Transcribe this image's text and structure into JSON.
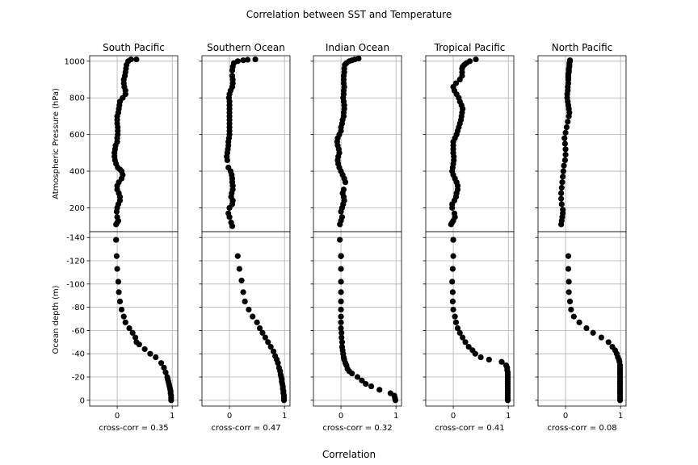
{
  "figure": {
    "title": "Correlation between SST and Temperature",
    "xlabel": "Correlation",
    "ylabel_top": "Atmospheric Pressure (hPa)",
    "ylabel_bottom": "Ocean depth (m)"
  },
  "chart_data": {
    "type": "scatter",
    "grid": true,
    "xlim": [
      -0.5,
      1.1
    ],
    "x_ticks": [
      0,
      1
    ],
    "atmosphere": {
      "ylabel": "Atmospheric Pressure (hPa)",
      "ylim": [
        1030,
        70
      ],
      "y_ticks": [
        200,
        400,
        600,
        800,
        1000
      ]
    },
    "ocean": {
      "ylabel": "Ocean depth (m)",
      "ylim": [
        -145,
        5
      ],
      "y_ticks": [
        0,
        -20,
        -40,
        -60,
        -80,
        -100,
        -120,
        -140
      ]
    },
    "panels": [
      {
        "name": "South Pacific",
        "caption": "cross-corr = 0.35",
        "atmosphere": {
          "x": [
            -0.02,
            0.0,
            0.02,
            0.0,
            -0.01,
            0.0,
            0.02,
            0.05,
            0.05,
            0.03,
            0.0,
            0.0,
            0.03,
            0.08,
            0.1,
            0.08,
            0.05,
            0.01,
            -0.02,
            -0.04,
            -0.05,
            -0.05,
            -0.04,
            -0.03,
            0.0,
            0.0,
            0.01,
            0.01,
            0.01,
            0.0,
            0.0,
            0.0,
            0.02,
            0.03,
            0.04,
            0.05,
            0.1,
            0.15,
            0.15,
            0.13,
            0.12,
            0.12,
            0.14,
            0.15,
            0.16,
            0.17,
            0.2,
            0.25,
            0.35
          ],
          "y": [
            110,
            120,
            130,
            150,
            180,
            200,
            220,
            240,
            260,
            280,
            300,
            320,
            340,
            360,
            380,
            400,
            410,
            420,
            440,
            460,
            480,
            500,
            520,
            540,
            560,
            580,
            600,
            620,
            640,
            660,
            680,
            700,
            720,
            740,
            760,
            780,
            800,
            820,
            840,
            860,
            880,
            900,
            920,
            940,
            960,
            980,
            1000,
            1010,
            1010
          ]
        },
        "ocean": {
          "x": [
            0.98,
            0.98,
            0.98,
            0.97,
            0.97,
            0.96,
            0.95,
            0.94,
            0.93,
            0.92,
            0.91,
            0.88,
            0.85,
            0.8,
            0.7,
            0.6,
            0.5,
            0.4,
            0.35,
            0.33,
            0.28,
            0.22,
            0.15,
            0.12,
            0.08,
            0.05,
            0.03,
            0.02,
            0.0,
            -0.01,
            -0.02,
            -0.02
          ],
          "y": [
            0,
            -2,
            -4,
            -6,
            -8,
            -10,
            -12,
            -14,
            -16,
            -18,
            -20,
            -24,
            -28,
            -32,
            -37,
            -40,
            -44,
            -48,
            -50,
            -54,
            -58,
            -62,
            -67,
            -72,
            -78,
            -85,
            -93,
            -102,
            -113,
            -124,
            -138,
            -138
          ]
        }
      },
      {
        "name": "Southern Ocean",
        "caption": "cross-corr = 0.47",
        "atmosphere": {
          "x": [
            0.05,
            0.03,
            0.0,
            -0.02,
            0.0,
            0.05,
            0.06,
            0.03,
            0.04,
            0.06,
            0.06,
            0.05,
            0.05,
            0.04,
            0.02,
            -0.02,
            -0.04,
            -0.05,
            -0.04,
            -0.03,
            -0.02,
            -0.02,
            -0.01,
            0.0,
            0.0,
            0.0,
            0.0,
            0.0,
            0.0,
            0.0,
            0.0,
            0.0,
            0.0,
            -0.01,
            0.0,
            0.02,
            0.05,
            0.06,
            0.06,
            0.05,
            0.05,
            0.06,
            0.08,
            0.15,
            0.25,
            0.33,
            0.47
          ],
          "y": [
            100,
            120,
            150,
            170,
            200,
            220,
            240,
            260,
            280,
            300,
            320,
            340,
            360,
            380,
            400,
            420,
            460,
            480,
            500,
            520,
            540,
            560,
            580,
            600,
            620,
            640,
            660,
            680,
            700,
            720,
            740,
            760,
            780,
            800,
            820,
            840,
            860,
            880,
            900,
            920,
            950,
            970,
            990,
            1000,
            1005,
            1008,
            1010
          ]
        },
        "ocean": {
          "x": [
            0.99,
            0.99,
            0.99,
            0.98,
            0.98,
            0.97,
            0.97,
            0.96,
            0.95,
            0.95,
            0.94,
            0.93,
            0.92,
            0.9,
            0.88,
            0.86,
            0.83,
            0.8,
            0.75,
            0.7,
            0.65,
            0.6,
            0.55,
            0.5,
            0.42,
            0.35,
            0.28,
            0.25,
            0.22,
            0.18,
            0.15
          ],
          "y": [
            0,
            -2,
            -4,
            -6,
            -8,
            -10,
            -12,
            -14,
            -16,
            -18,
            -20,
            -22,
            -25,
            -28,
            -32,
            -35,
            -38,
            -42,
            -46,
            -50,
            -54,
            -58,
            -62,
            -67,
            -72,
            -78,
            -85,
            -93,
            -103,
            -113,
            -124
          ]
        }
      },
      {
        "name": "Indian Ocean",
        "caption": "cross-corr = 0.32",
        "atmosphere": {
          "x": [
            -0.02,
            0.0,
            0.02,
            0.0,
            0.02,
            0.04,
            0.06,
            0.05,
            0.03,
            0.05,
            0.08,
            0.06,
            0.03,
            0.0,
            -0.03,
            -0.05,
            -0.06,
            -0.05,
            -0.03,
            -0.04,
            -0.06,
            -0.07,
            -0.06,
            -0.03,
            0.0,
            0.0,
            0.02,
            0.03,
            0.05,
            0.05,
            0.06,
            0.06,
            0.05,
            0.04,
            0.05,
            0.05,
            0.06,
            0.05,
            0.05,
            0.05,
            0.06,
            0.06,
            0.07,
            0.1,
            0.15,
            0.2,
            0.25,
            0.32
          ],
          "y": [
            110,
            130,
            150,
            180,
            200,
            220,
            240,
            260,
            280,
            300,
            340,
            360,
            380,
            400,
            420,
            440,
            460,
            480,
            500,
            520,
            540,
            560,
            580,
            600,
            620,
            640,
            660,
            680,
            700,
            720,
            740,
            760,
            780,
            800,
            820,
            840,
            860,
            880,
            900,
            920,
            940,
            960,
            980,
            990,
            1000,
            1005,
            1010,
            1015
          ]
        },
        "ocean": {
          "x": [
            0.99,
            0.98,
            0.97,
            0.9,
            0.7,
            0.55,
            0.45,
            0.38,
            0.3,
            0.2,
            0.15,
            0.12,
            0.1,
            0.08,
            0.06,
            0.05,
            0.04,
            0.03,
            0.02,
            0.02,
            0.01,
            0.01,
            0.0,
            0.0,
            0.0,
            0.0,
            0.0,
            0.0,
            0.0,
            0.0,
            0.0,
            0.0,
            0.0,
            0.0,
            0.0,
            -0.02
          ],
          "y": [
            0,
            -2,
            -4,
            -6,
            -9,
            -12,
            -14,
            -17,
            -20,
            -23,
            -25,
            -27,
            -30,
            -32,
            -35,
            -37,
            -40,
            -43,
            -46,
            -50,
            -54,
            -58,
            -62,
            -67,
            -72,
            -78,
            -85,
            -93,
            -102,
            -113,
            -124,
            -124,
            -124,
            -124,
            -124,
            -138
          ]
        }
      },
      {
        "name": "Tropical Pacific",
        "caption": "cross-corr = 0.41",
        "atmosphere": {
          "x": [
            -0.04,
            -0.02,
            0.0,
            0.03,
            0.02,
            -0.02,
            -0.02,
            0.02,
            0.05,
            0.06,
            0.08,
            0.08,
            0.06,
            0.03,
            0.0,
            -0.02,
            -0.01,
            0.0,
            0.01,
            0.01,
            0.0,
            0.0,
            0.0,
            0.0,
            0.03,
            0.06,
            0.08,
            0.1,
            0.12,
            0.14,
            0.15,
            0.16,
            0.17,
            0.15,
            0.12,
            0.1,
            0.06,
            0.02,
            0.0,
            0.05,
            0.12,
            0.16,
            0.16,
            0.16,
            0.17,
            0.2,
            0.24,
            0.3,
            0.41
          ],
          "y": [
            110,
            120,
            130,
            150,
            170,
            200,
            220,
            240,
            260,
            280,
            300,
            320,
            340,
            360,
            380,
            400,
            420,
            440,
            460,
            480,
            500,
            520,
            540,
            560,
            580,
            600,
            620,
            640,
            660,
            680,
            700,
            720,
            740,
            760,
            780,
            800,
            820,
            840,
            860,
            880,
            900,
            920,
            940,
            960,
            970,
            980,
            990,
            1000,
            1010
          ]
        },
        "ocean": {
          "x": [
            0.99,
            0.99,
            0.99,
            0.99,
            0.99,
            0.99,
            0.99,
            0.99,
            0.99,
            0.99,
            0.99,
            0.99,
            0.99,
            0.98,
            0.98,
            0.96,
            0.88,
            0.65,
            0.5,
            0.4,
            0.35,
            0.28,
            0.22,
            0.17,
            0.12,
            0.08,
            0.05,
            0.03,
            0.0,
            -0.01,
            -0.01,
            -0.02,
            -0.01,
            0.0,
            0.0,
            0.0
          ],
          "y": [
            0,
            -2,
            -4,
            -6,
            -8,
            -10,
            -12,
            -14,
            -16,
            -18,
            -20,
            -22,
            -24,
            -26,
            -28,
            -30,
            -33,
            -35,
            -37,
            -40,
            -43,
            -46,
            -50,
            -54,
            -58,
            -62,
            -67,
            -72,
            -78,
            -85,
            -93,
            -102,
            -113,
            -124,
            -138,
            -138
          ]
        }
      },
      {
        "name": "North Pacific",
        "caption": "cross-corr = 0.08",
        "atmosphere": {
          "x": [
            -0.08,
            -0.07,
            -0.06,
            -0.05,
            -0.05,
            -0.07,
            -0.08,
            -0.08,
            -0.07,
            -0.06,
            -0.05,
            -0.04,
            -0.03,
            -0.01,
            0.0,
            0.0,
            -0.01,
            -0.02,
            0.0,
            0.02,
            0.04,
            0.06,
            0.07,
            0.06,
            0.05,
            0.04,
            0.03,
            0.03,
            0.04,
            0.04,
            0.05,
            0.05,
            0.05,
            0.05,
            0.05,
            0.06,
            0.06,
            0.06,
            0.07,
            0.07,
            0.07,
            0.08,
            0.08
          ],
          "y": [
            110,
            130,
            150,
            170,
            190,
            220,
            250,
            280,
            310,
            340,
            370,
            400,
            430,
            460,
            490,
            520,
            550,
            580,
            610,
            640,
            670,
            700,
            720,
            740,
            760,
            780,
            800,
            820,
            840,
            860,
            880,
            900,
            910,
            920,
            930,
            940,
            950,
            960,
            970,
            980,
            990,
            1000,
            1005
          ]
        },
        "ocean": {
          "x": [
            0.99,
            0.99,
            0.99,
            0.99,
            0.99,
            0.99,
            0.99,
            0.99,
            0.99,
            0.99,
            0.99,
            0.99,
            0.99,
            0.99,
            0.99,
            0.99,
            0.98,
            0.97,
            0.95,
            0.93,
            0.9,
            0.85,
            0.78,
            0.65,
            0.5,
            0.38,
            0.25,
            0.15,
            0.1,
            0.08,
            0.06,
            0.06,
            0.05,
            0.05
          ],
          "y": [
            0,
            -2,
            -4,
            -6,
            -8,
            -10,
            -12,
            -14,
            -16,
            -18,
            -20,
            -22,
            -24,
            -26,
            -28,
            -30,
            -33,
            -35,
            -37,
            -40,
            -43,
            -46,
            -50,
            -54,
            -58,
            -62,
            -67,
            -72,
            -78,
            -85,
            -93,
            -102,
            -113,
            -124
          ]
        }
      }
    ]
  }
}
